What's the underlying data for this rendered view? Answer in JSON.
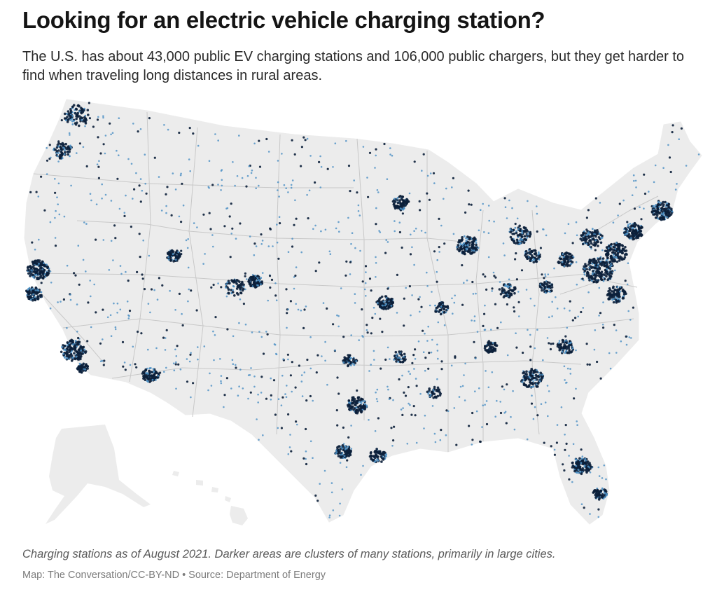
{
  "title": "Looking for an electric vehicle charging station?",
  "subtitle": "The U.S. has about 43,000 public EV charging stations and 106,000 public chargers, but they get harder to find when traveling long distances in rural areas.",
  "caption": "Charging stations as of August 2021. Darker areas are clusters of many stations, primarily in large cities.",
  "credit": "Map: The Conversation/CC-BY-ND • Source: Department of Energy",
  "colors": {
    "land": "#ececec",
    "border": "#c8c8c8",
    "station_dark": "#0b1f3a",
    "station_light": "#4a8fc4"
  }
}
